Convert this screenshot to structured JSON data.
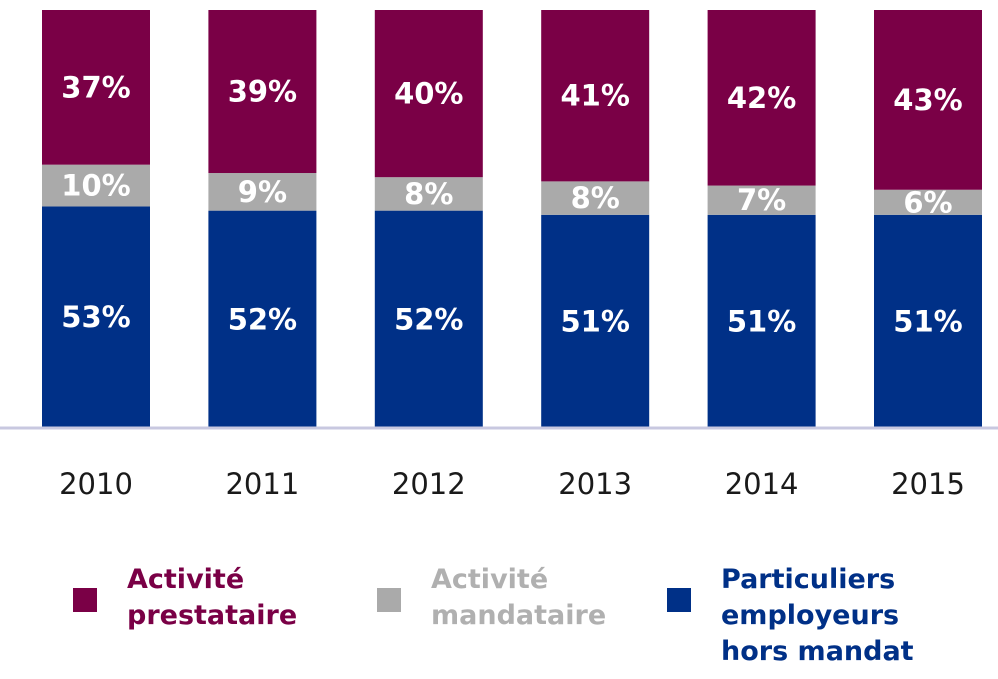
{
  "chart_data": {
    "type": "bar",
    "stacked": true,
    "percent": true,
    "categories": [
      "2010",
      "2011",
      "2012",
      "2013",
      "2014",
      "2015"
    ],
    "series": [
      {
        "name": "Particuliers employeurs hors mandat",
        "color": "#003087",
        "values": [
          53,
          52,
          52,
          51,
          51,
          51
        ],
        "labels": [
          "53%",
          "52%",
          "52%",
          "51%",
          "51%",
          "51%"
        ]
      },
      {
        "name": "Activité mandataire",
        "color": "#aaaaaa",
        "values": [
          10,
          9,
          8,
          8,
          7,
          6
        ],
        "labels": [
          "10%",
          "9%",
          "8%",
          "8%",
          "7%",
          "6%"
        ]
      },
      {
        "name": "Activité prestataire",
        "color": "#7a0046",
        "values": [
          37,
          39,
          40,
          41,
          42,
          43
        ],
        "labels": [
          "37%",
          "39%",
          "40%",
          "41%",
          "42%",
          "43%"
        ]
      }
    ],
    "ylim": [
      0,
      100
    ],
    "legend": {
      "position": "bottom",
      "items": [
        {
          "label": "Activité\nprestataire",
          "color": "#7a0046",
          "text_color": "#7a0046"
        },
        {
          "label": "Activité\nmandataire",
          "color": "#aaaaaa",
          "text_color": "#b0b0b0"
        },
        {
          "label": "Particuliers\nemployeurs\nhors mandat",
          "color": "#003087",
          "text_color": "#003087"
        }
      ]
    },
    "axis_color": "#c8c8e0",
    "grid": false
  }
}
